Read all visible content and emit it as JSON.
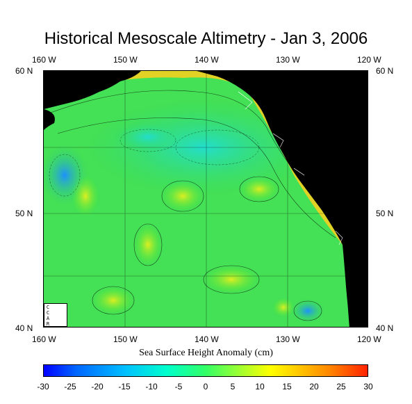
{
  "title": "Historical Mesoscale Altimetry - Jan 3, 2006",
  "map": {
    "lon_labels": [
      "160 W",
      "150 W",
      "140 W",
      "130 W",
      "120 W"
    ],
    "lat_labels": [
      "60 N",
      "50 N",
      "40 N"
    ],
    "lon_range": [
      -160,
      -120
    ],
    "lat_range": [
      40,
      60
    ],
    "land_color": "#000000",
    "logo_text": "CCAR"
  },
  "colorbar": {
    "label": "Sea Surface Height Anomaly (cm)",
    "ticks": [
      "-30",
      "-25",
      "-20",
      "-15",
      "-10",
      "-5",
      "0",
      "5",
      "10",
      "15",
      "20",
      "25",
      "30"
    ],
    "range": [
      -30,
      30
    ],
    "colors": [
      "#0000ff",
      "#0066ff",
      "#00bfff",
      "#00ffcc",
      "#33ff66",
      "#66ff33",
      "#ccff33",
      "#ffff00",
      "#ffcc00",
      "#ff8800",
      "#ff3300"
    ]
  }
}
